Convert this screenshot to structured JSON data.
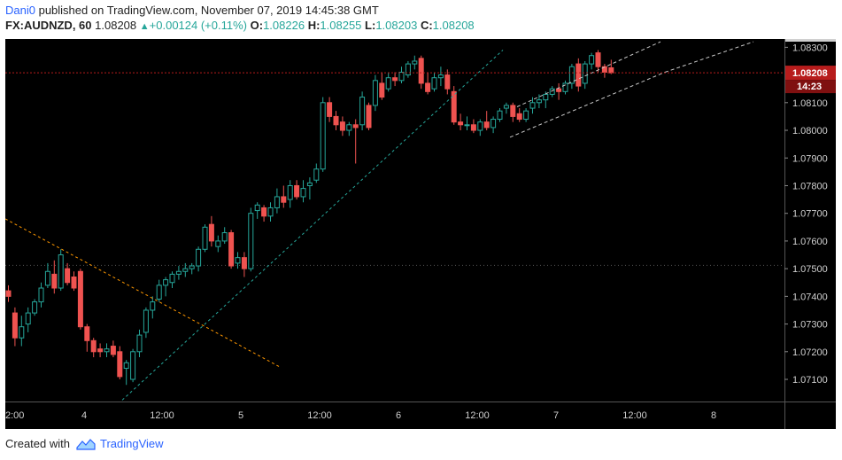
{
  "header": {
    "author": "Dani0",
    "published_text": "published on TradingView.com, November 07, 2019 14:45:38 GMT",
    "symbol": "FX:AUDNZD, 60",
    "last": "1.08208",
    "change": "+0.00124 (+0.11%)",
    "open_label": "O:",
    "open": "1.08226",
    "high_label": "H:",
    "high": "1.08255",
    "low_label": "L:",
    "low": "1.08203",
    "close_label": "C:",
    "close": "1.08208"
  },
  "footer": {
    "created_with": "Created with",
    "brand": "TradingView"
  },
  "colors": {
    "up": "#26a69a",
    "down": "#ef5350",
    "background": "#000000",
    "price_line": "#b71c1c",
    "orange_line": "#ff9800",
    "teal_line": "#26a69a"
  },
  "chart_data": {
    "type": "candlestick",
    "interval": "60",
    "ylim": [
      1.0702,
      1.0833
    ],
    "yticks": [
      "1.08300",
      "1.08100",
      "1.08000",
      "1.07900",
      "1.07800",
      "1.07700",
      "1.07600",
      "1.07500",
      "1.07400",
      "1.07300",
      "1.07200",
      "1.07100"
    ],
    "x_ticks": [
      "2:00",
      "4",
      "12:00",
      "5",
      "12:00",
      "6",
      "12:00",
      "7",
      "12:00",
      "8"
    ],
    "last_price_label": "1.08208",
    "countdown_label": "14:23",
    "candles": [
      {
        "o": 1.0742,
        "h": 1.0744,
        "l": 1.0738,
        "c": 1.074
      },
      {
        "o": 1.0734,
        "h": 1.0736,
        "l": 1.0722,
        "c": 1.0725
      },
      {
        "o": 1.0725,
        "h": 1.0733,
        "l": 1.0722,
        "c": 1.0729
      },
      {
        "o": 1.073,
        "h": 1.0736,
        "l": 1.0727,
        "c": 1.0734
      },
      {
        "o": 1.0734,
        "h": 1.0739,
        "l": 1.0733,
        "c": 1.0738
      },
      {
        "o": 1.0738,
        "h": 1.0745,
        "l": 1.0736,
        "c": 1.0743
      },
      {
        "o": 1.0744,
        "h": 1.0752,
        "l": 1.0743,
        "c": 1.0749
      },
      {
        "o": 1.0748,
        "h": 1.0753,
        "l": 1.0741,
        "c": 1.0743
      },
      {
        "o": 1.0743,
        "h": 1.0757,
        "l": 1.0742,
        "c": 1.0755
      },
      {
        "o": 1.075,
        "h": 1.0752,
        "l": 1.0744,
        "c": 1.0745
      },
      {
        "o": 1.0747,
        "h": 1.0749,
        "l": 1.0742,
        "c": 1.0743
      },
      {
        "o": 1.0749,
        "h": 1.075,
        "l": 1.0728,
        "c": 1.0729
      },
      {
        "o": 1.0729,
        "h": 1.073,
        "l": 1.072,
        "c": 1.0724
      },
      {
        "o": 1.0724,
        "h": 1.0725,
        "l": 1.0718,
        "c": 1.072
      },
      {
        "o": 1.0721,
        "h": 1.0723,
        "l": 1.0718,
        "c": 1.072
      },
      {
        "o": 1.072,
        "h": 1.0723,
        "l": 1.0718,
        "c": 1.0721
      },
      {
        "o": 1.0722,
        "h": 1.0724,
        "l": 1.0718,
        "c": 1.0719
      },
      {
        "o": 1.072,
        "h": 1.0722,
        "l": 1.071,
        "c": 1.0711
      },
      {
        "o": 1.0714,
        "h": 1.0717,
        "l": 1.0708,
        "c": 1.0716
      },
      {
        "o": 1.071,
        "h": 1.0721,
        "l": 1.0709,
        "c": 1.072
      },
      {
        "o": 1.072,
        "h": 1.0728,
        "l": 1.0718,
        "c": 1.0726
      },
      {
        "o": 1.0727,
        "h": 1.0736,
        "l": 1.0725,
        "c": 1.0735
      },
      {
        "o": 1.0735,
        "h": 1.074,
        "l": 1.0732,
        "c": 1.0738
      },
      {
        "o": 1.0739,
        "h": 1.0746,
        "l": 1.0738,
        "c": 1.0744
      },
      {
        "o": 1.0744,
        "h": 1.0747,
        "l": 1.074,
        "c": 1.0746
      },
      {
        "o": 1.0745,
        "h": 1.0749,
        "l": 1.0743,
        "c": 1.0748
      },
      {
        "o": 1.0748,
        "h": 1.0751,
        "l": 1.0746,
        "c": 1.0749
      },
      {
        "o": 1.0749,
        "h": 1.0752,
        "l": 1.0747,
        "c": 1.075
      },
      {
        "o": 1.075,
        "h": 1.0752,
        "l": 1.0748,
        "c": 1.0751
      },
      {
        "o": 1.0751,
        "h": 1.0758,
        "l": 1.0749,
        "c": 1.0757
      },
      {
        "o": 1.0757,
        "h": 1.0766,
        "l": 1.0756,
        "c": 1.0765
      },
      {
        "o": 1.0766,
        "h": 1.0769,
        "l": 1.0758,
        "c": 1.076
      },
      {
        "o": 1.0758,
        "h": 1.0762,
        "l": 1.0756,
        "c": 1.076
      },
      {
        "o": 1.076,
        "h": 1.0765,
        "l": 1.0759,
        "c": 1.0763
      },
      {
        "o": 1.0763,
        "h": 1.0764,
        "l": 1.075,
        "c": 1.0751
      },
      {
        "o": 1.0752,
        "h": 1.0756,
        "l": 1.075,
        "c": 1.0754
      },
      {
        "o": 1.0754,
        "h": 1.0756,
        "l": 1.0747,
        "c": 1.075
      },
      {
        "o": 1.075,
        "h": 1.0772,
        "l": 1.0749,
        "c": 1.077
      },
      {
        "o": 1.0771,
        "h": 1.0774,
        "l": 1.0768,
        "c": 1.0773
      },
      {
        "o": 1.0772,
        "h": 1.0773,
        "l": 1.0767,
        "c": 1.0769
      },
      {
        "o": 1.0769,
        "h": 1.0774,
        "l": 1.0767,
        "c": 1.0772
      },
      {
        "o": 1.0772,
        "h": 1.0779,
        "l": 1.077,
        "c": 1.0776
      },
      {
        "o": 1.0776,
        "h": 1.078,
        "l": 1.0772,
        "c": 1.0774
      },
      {
        "o": 1.0775,
        "h": 1.0782,
        "l": 1.0772,
        "c": 1.078
      },
      {
        "o": 1.078,
        "h": 1.0782,
        "l": 1.0775,
        "c": 1.0776
      },
      {
        "o": 1.0776,
        "h": 1.0782,
        "l": 1.0774,
        "c": 1.0779
      },
      {
        "o": 1.078,
        "h": 1.0783,
        "l": 1.0775,
        "c": 1.0781
      },
      {
        "o": 1.0782,
        "h": 1.0788,
        "l": 1.0781,
        "c": 1.0786
      },
      {
        "o": 1.0786,
        "h": 1.0812,
        "l": 1.0785,
        "c": 1.081
      },
      {
        "o": 1.081,
        "h": 1.0812,
        "l": 1.0803,
        "c": 1.0805
      },
      {
        "o": 1.0805,
        "h": 1.0807,
        "l": 1.08,
        "c": 1.0802
      },
      {
        "o": 1.0803,
        "h": 1.0805,
        "l": 1.0798,
        "c": 1.08
      },
      {
        "o": 1.08,
        "h": 1.0803,
        "l": 1.0798,
        "c": 1.0802
      },
      {
        "o": 1.0802,
        "h": 1.0804,
        "l": 1.0788,
        "c": 1.0801
      },
      {
        "o": 1.0802,
        "h": 1.0814,
        "l": 1.08,
        "c": 1.0812
      },
      {
        "o": 1.0809,
        "h": 1.081,
        "l": 1.08,
        "c": 1.0801
      },
      {
        "o": 1.0809,
        "h": 1.082,
        "l": 1.0807,
        "c": 1.0818
      },
      {
        "o": 1.0817,
        "h": 1.0821,
        "l": 1.0811,
        "c": 1.0812
      },
      {
        "o": 1.0815,
        "h": 1.0821,
        "l": 1.0814,
        "c": 1.0819
      },
      {
        "o": 1.0819,
        "h": 1.0821,
        "l": 1.0816,
        "c": 1.0818
      },
      {
        "o": 1.0818,
        "h": 1.0823,
        "l": 1.0817,
        "c": 1.0821
      },
      {
        "o": 1.082,
        "h": 1.0825,
        "l": 1.0819,
        "c": 1.0824
      },
      {
        "o": 1.0824,
        "h": 1.0827,
        "l": 1.0822,
        "c": 1.0825
      },
      {
        "o": 1.0826,
        "h": 1.0827,
        "l": 1.0815,
        "c": 1.0817
      },
      {
        "o": 1.0817,
        "h": 1.0821,
        "l": 1.0813,
        "c": 1.0814
      },
      {
        "o": 1.0815,
        "h": 1.0821,
        "l": 1.0814,
        "c": 1.0819
      },
      {
        "o": 1.0819,
        "h": 1.0823,
        "l": 1.0816,
        "c": 1.082
      },
      {
        "o": 1.082,
        "h": 1.0822,
        "l": 1.0813,
        "c": 1.0815
      },
      {
        "o": 1.0814,
        "h": 1.0816,
        "l": 1.0802,
        "c": 1.0803
      },
      {
        "o": 1.0803,
        "h": 1.0806,
        "l": 1.08,
        "c": 1.0802
      },
      {
        "o": 1.0802,
        "h": 1.0805,
        "l": 1.08,
        "c": 1.0802
      },
      {
        "o": 1.0802,
        "h": 1.0804,
        "l": 1.0799,
        "c": 1.08
      },
      {
        "o": 1.08,
        "h": 1.0804,
        "l": 1.0798,
        "c": 1.0803
      },
      {
        "o": 1.0803,
        "h": 1.0807,
        "l": 1.08,
        "c": 1.0801
      },
      {
        "o": 1.0801,
        "h": 1.0805,
        "l": 1.0799,
        "c": 1.0804
      },
      {
        "o": 1.0804,
        "h": 1.0808,
        "l": 1.0803,
        "c": 1.0807
      },
      {
        "o": 1.0808,
        "h": 1.081,
        "l": 1.0806,
        "c": 1.0809
      },
      {
        "o": 1.0809,
        "h": 1.081,
        "l": 1.0803,
        "c": 1.0805
      },
      {
        "o": 1.0806,
        "h": 1.0808,
        "l": 1.0803,
        "c": 1.0804
      },
      {
        "o": 1.0804,
        "h": 1.0808,
        "l": 1.0803,
        "c": 1.0807
      },
      {
        "o": 1.0808,
        "h": 1.0812,
        "l": 1.0806,
        "c": 1.081
      },
      {
        "o": 1.081,
        "h": 1.0813,
        "l": 1.0808,
        "c": 1.0811
      },
      {
        "o": 1.0811,
        "h": 1.0814,
        "l": 1.0808,
        "c": 1.0813
      },
      {
        "o": 1.0813,
        "h": 1.0816,
        "l": 1.0812,
        "c": 1.0815
      },
      {
        "o": 1.0815,
        "h": 1.0817,
        "l": 1.0811,
        "c": 1.0814
      },
      {
        "o": 1.0814,
        "h": 1.0818,
        "l": 1.0813,
        "c": 1.0817
      },
      {
        "o": 1.0817,
        "h": 1.0824,
        "l": 1.0815,
        "c": 1.0823
      },
      {
        "o": 1.0824,
        "h": 1.0826,
        "l": 1.0814,
        "c": 1.0816
      },
      {
        "o": 1.0817,
        "h": 1.0825,
        "l": 1.0815,
        "c": 1.0824
      },
      {
        "o": 1.0824,
        "h": 1.0828,
        "l": 1.0822,
        "c": 1.0827
      },
      {
        "o": 1.0828,
        "h": 1.0829,
        "l": 1.0821,
        "c": 1.0823
      },
      {
        "o": 1.0823,
        "h": 1.0824,
        "l": 1.0819,
        "c": 1.0821
      },
      {
        "o": 1.08226,
        "h": 1.08255,
        "l": 1.08203,
        "c": 1.08208
      }
    ]
  }
}
